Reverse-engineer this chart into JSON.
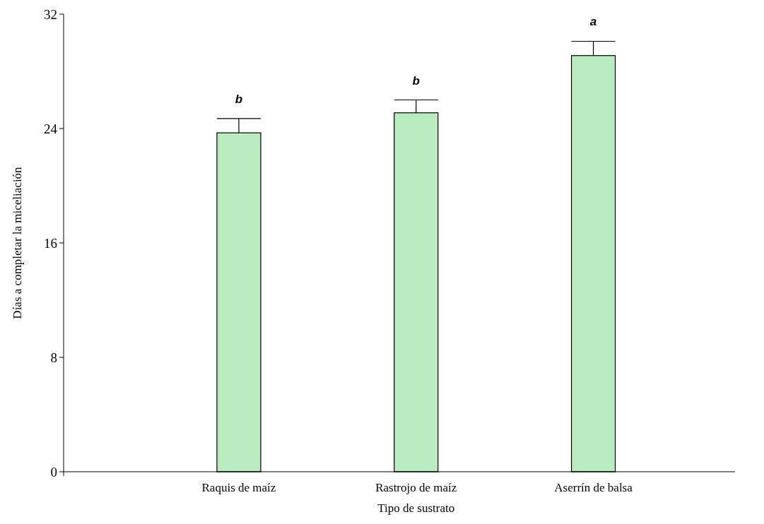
{
  "chart_data": {
    "type": "bar",
    "xlabel": "Tipo de sustrato",
    "ylabel": "Días a completar la miceliación",
    "categories": [
      "Raquis de maíz",
      "Rastrojo de maíz",
      "Aserrín de balsa"
    ],
    "values": [
      23.7,
      25.1,
      29.1
    ],
    "errors": [
      [
        23.7,
        24.7
      ],
      [
        25.1,
        26.0
      ],
      [
        29.1,
        30.1
      ]
    ],
    "color": "#b8ebc0",
    "ylim": [
      0,
      32
    ],
    "yticks": [
      0,
      8,
      16,
      24,
      32
    ],
    "grid": false,
    "annotations": [
      "b",
      "b",
      "a"
    ]
  }
}
